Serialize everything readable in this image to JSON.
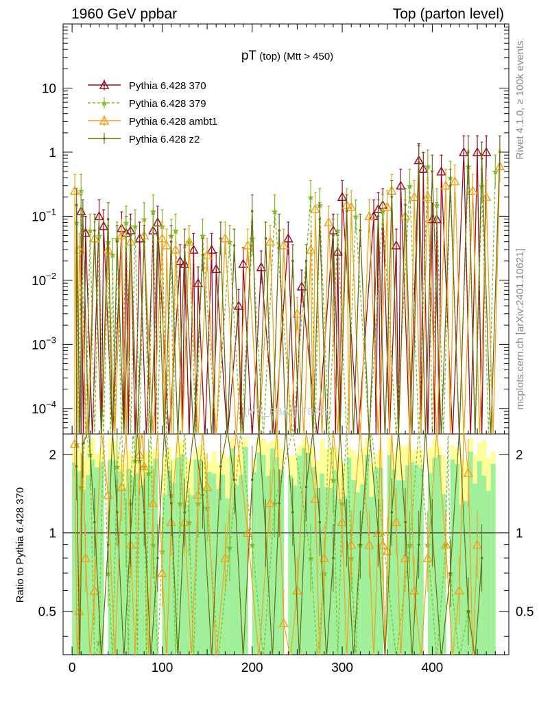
{
  "header": {
    "left": "1960 GeV ppbar",
    "right": "Top (parton level)"
  },
  "side_labels": {
    "rivet": "Rivet 4.1.0, ≥ 100k events",
    "mcplots": "mcplots.cern.ch [arXiv:2401.10621]"
  },
  "watermark": "(MC_FBA_TTBAR)",
  "chart_data": {
    "type": "line",
    "title_main": "pT",
    "title_sub": " (top) (Mtt > 450)",
    "xlabel": "",
    "ylabel": "",
    "xlim": [
      -10,
      485
    ],
    "ylim": [
      4e-05,
      100
    ],
    "y_scale": "log",
    "x_ticks": [
      0,
      100,
      200,
      300,
      400
    ],
    "x_tick_labels": [
      "0",
      "100",
      "200",
      "300",
      "400"
    ],
    "y_ticks": [
      0.0001,
      0.001,
      0.01,
      0.1,
      1,
      10
    ],
    "y_tick_labels": [
      {
        "base": "10",
        "exp": "−4"
      },
      {
        "base": "10",
        "exp": "−3"
      },
      {
        "base": "10",
        "exp": "−2"
      },
      {
        "base": "10",
        "exp": "−1"
      },
      {
        "base": "1",
        "exp": ""
      },
      {
        "base": "10",
        "exp": ""
      }
    ],
    "legend_position": "top-left",
    "series": [
      {
        "name": "Pythia 6.428 370",
        "color": "#9a0f1e",
        "dash": "",
        "marker": "triangle-open",
        "points": [
          [
            10,
            0.12
          ],
          [
            15,
            0.055
          ],
          [
            30,
            0.1
          ],
          [
            35,
            0.07
          ],
          [
            55,
            0.065
          ],
          [
            60,
            0.055
          ],
          [
            65,
            0.06
          ],
          [
            75,
            0.045
          ],
          [
            90,
            0.06
          ],
          [
            95,
            0.08
          ],
          [
            120,
            0.02
          ],
          [
            125,
            0.018
          ],
          [
            135,
            0.03
          ],
          [
            140,
            0.009
          ],
          [
            155,
            0.03
          ],
          [
            160,
            0.015
          ],
          [
            185,
            0.004
          ],
          [
            190,
            0.018
          ],
          [
            210,
            0.016
          ],
          [
            240,
            0.045
          ],
          [
            255,
            0.008
          ],
          [
            290,
            0.06
          ],
          [
            295,
            0.028
          ],
          [
            300,
            0.2
          ],
          [
            335,
            0.1
          ],
          [
            340,
            0.13
          ],
          [
            345,
            0.15
          ],
          [
            360,
            0.035
          ],
          [
            365,
            0.3
          ],
          [
            385,
            0.75
          ],
          [
            390,
            0.55
          ],
          [
            400,
            0.09
          ],
          [
            405,
            0.09
          ],
          [
            410,
            0.5
          ],
          [
            435,
            1.0
          ],
          [
            450,
            1.0
          ],
          [
            460,
            1.0
          ]
        ]
      },
      {
        "name": "Pythia 6.428 379",
        "color": "#7db928",
        "dash": "4,3",
        "marker": "star",
        "points": [
          [
            5,
            0.08
          ],
          [
            10,
            0.25
          ],
          [
            20,
            0.06
          ],
          [
            30,
            0.05
          ],
          [
            40,
            0.04
          ],
          [
            45,
            0.025
          ],
          [
            50,
            0.045
          ],
          [
            60,
            0.08
          ],
          [
            70,
            0.07
          ],
          [
            80,
            0.09
          ],
          [
            90,
            0.12
          ],
          [
            100,
            0.07
          ],
          [
            110,
            0.05
          ],
          [
            115,
            0.06
          ],
          [
            130,
            0.04
          ],
          [
            145,
            0.05
          ],
          [
            175,
            0.04
          ],
          [
            200,
            0.045
          ],
          [
            225,
            0.12
          ],
          [
            265,
            0.2
          ],
          [
            275,
            0.15
          ],
          [
            295,
            0.06
          ],
          [
            315,
            0.1
          ],
          [
            345,
            0.12
          ],
          [
            375,
            0.3
          ],
          [
            395,
            0.6
          ],
          [
            405,
            0.15
          ],
          [
            420,
            0.4
          ],
          [
            440,
            0.6
          ],
          [
            455,
            0.3
          ],
          [
            470,
            0.5
          ]
        ]
      },
      {
        "name": "Pythia 6.428 ambt1",
        "color": "#f0a21c",
        "dash": "",
        "marker": "triangle-open",
        "points": [
          [
            3,
            0.25
          ],
          [
            8,
            0.03
          ],
          [
            25,
            0.045
          ],
          [
            40,
            0.03
          ],
          [
            55,
            0.05
          ],
          [
            65,
            0.04
          ],
          [
            80,
            0.05
          ],
          [
            100,
            0.045
          ],
          [
            105,
            0.035
          ],
          [
            115,
            0.03
          ],
          [
            130,
            0.04
          ],
          [
            150,
            0.025
          ],
          [
            170,
            0.045
          ],
          [
            195,
            0.035
          ],
          [
            220,
            0.04
          ],
          [
            235,
            0.035
          ],
          [
            250,
            0.003
          ],
          [
            265,
            0.03
          ],
          [
            270,
            0.13
          ],
          [
            285,
            0.08
          ],
          [
            305,
            0.15
          ],
          [
            310,
            0.14
          ],
          [
            330,
            0.1
          ],
          [
            350,
            0.14
          ],
          [
            355,
            0.25
          ],
          [
            370,
            0.1
          ],
          [
            380,
            0.2
          ],
          [
            395,
            0.2
          ],
          [
            415,
            0.3
          ],
          [
            425,
            0.35
          ],
          [
            445,
            0.25
          ],
          [
            460,
            0.2
          ],
          [
            475,
            0.6
          ]
        ]
      },
      {
        "name": "Pythia 6.428 z2",
        "color": "#6b6b14",
        "dash": "",
        "marker": "dot",
        "points": [
          [
            5,
            0.15
          ],
          [
            12,
            0.1
          ],
          [
            25,
            0.06
          ],
          [
            40,
            0.09
          ],
          [
            50,
            0.04
          ],
          [
            65,
            0.05
          ],
          [
            80,
            0.04
          ],
          [
            95,
            0.05
          ],
          [
            110,
            0.04
          ],
          [
            125,
            0.035
          ],
          [
            145,
            0.025
          ],
          [
            165,
            0.045
          ],
          [
            180,
            0.035
          ],
          [
            200,
            0.12
          ],
          [
            215,
            0.045
          ],
          [
            230,
            0.06
          ],
          [
            245,
            0.02
          ],
          [
            260,
            0.02
          ],
          [
            275,
            0.09
          ],
          [
            290,
            0.05
          ],
          [
            305,
            0.12
          ],
          [
            320,
            0.06
          ],
          [
            340,
            0.1
          ],
          [
            355,
            0.2
          ],
          [
            370,
            0.15
          ],
          [
            385,
            0.7
          ],
          [
            400,
            0.5
          ],
          [
            420,
            0.3
          ],
          [
            440,
            1.0
          ],
          [
            455,
            0.8
          ],
          [
            475,
            1.0
          ]
        ]
      }
    ],
    "ratio_panel": {
      "ylabel": "Ratio to Pythia 6.428 370",
      "ylim": [
        0.34,
        2.4
      ],
      "y_scale": "log",
      "y_ticks": [
        0.5,
        1,
        2
      ],
      "y_tick_labels": [
        "0.5",
        "1",
        "2"
      ],
      "reference": 1,
      "band_x_start": 0,
      "band_x_end": 470,
      "band_bin_width": 5,
      "ratios": {
        "Pythia 6.428 379": [
          [
            5,
            2.2
          ],
          [
            10,
            1.5
          ],
          [
            20,
            2.0
          ],
          [
            30,
            0.38
          ],
          [
            40,
            0.7
          ],
          [
            50,
            1.8
          ],
          [
            60,
            1.0
          ],
          [
            65,
            1.3
          ],
          [
            70,
            1.9
          ],
          [
            75,
            1.9
          ],
          [
            80,
            1.8
          ],
          [
            85,
            1.7
          ],
          [
            90,
            0.9
          ],
          [
            100,
            0.85
          ],
          [
            110,
            1.4
          ],
          [
            120,
            1.3
          ],
          [
            130,
            1.1
          ],
          [
            140,
            1.3
          ],
          [
            150,
            1.25
          ],
          [
            175,
            0.88
          ],
          [
            200,
            0.9
          ],
          [
            225,
            1.3
          ],
          [
            265,
            0.8
          ],
          [
            280,
            0.7
          ],
          [
            290,
            1.6
          ],
          [
            300,
            1.3
          ],
          [
            310,
            0.8
          ],
          [
            320,
            0.9
          ],
          [
            345,
            1.0
          ],
          [
            375,
            0.9
          ],
          [
            395,
            0.9
          ],
          [
            415,
            0.9
          ],
          [
            420,
            0.7
          ],
          [
            440,
            0.5
          ]
        ]
      },
      "ambt1_ratios": [
        [
          3,
          2.2
        ],
        [
          8,
          0.5
        ],
        [
          15,
          0.8
        ],
        [
          25,
          0.6
        ],
        [
          40,
          1.4
        ],
        [
          55,
          1.5
        ],
        [
          65,
          0.9
        ],
        [
          75,
          2.0
        ],
        [
          80,
          1.8
        ],
        [
          90,
          1.3
        ],
        [
          100,
          0.7
        ],
        [
          110,
          1.1
        ],
        [
          125,
          1.1
        ],
        [
          140,
          1.4
        ],
        [
          150,
          1.5
        ],
        [
          170,
          0.8
        ],
        [
          195,
          1.0
        ],
        [
          220,
          1.3
        ],
        [
          235,
          0.45
        ],
        [
          250,
          0.6
        ],
        [
          270,
          1.35
        ],
        [
          280,
          0.8
        ],
        [
          300,
          1.1
        ],
        [
          310,
          0.9
        ],
        [
          330,
          0.9
        ],
        [
          340,
          1.0
        ],
        [
          345,
          0.9
        ],
        [
          350,
          0.85
        ],
        [
          360,
          1.1
        ],
        [
          370,
          0.8
        ],
        [
          380,
          0.6
        ],
        [
          395,
          0.8
        ],
        [
          415,
          0.9
        ],
        [
          430,
          0.6
        ],
        [
          440,
          1.7
        ],
        [
          450,
          0.9
        ]
      ],
      "z2_ratios": [
        [
          5,
          1.8
        ],
        [
          12,
          2.2
        ],
        [
          25,
          1.1
        ],
        [
          40,
          0.9
        ],
        [
          50,
          1.2
        ],
        [
          65,
          1.0
        ],
        [
          80,
          1.2
        ],
        [
          95,
          0.8
        ],
        [
          110,
          1.3
        ],
        [
          125,
          1.2
        ],
        [
          145,
          1.4
        ],
        [
          165,
          1.8
        ],
        [
          180,
          1.6
        ],
        [
          200,
          1.6
        ],
        [
          215,
          1.0
        ],
        [
          230,
          1.3
        ],
        [
          245,
          1.2
        ],
        [
          260,
          1.5
        ],
        [
          275,
          1.1
        ],
        [
          290,
          0.8
        ],
        [
          305,
          1.0
        ],
        [
          320,
          0.9
        ],
        [
          340,
          1.0
        ],
        [
          355,
          1.2
        ],
        [
          370,
          1.1
        ],
        [
          385,
          0.9
        ],
        [
          400,
          1.0
        ],
        [
          420,
          0.7
        ],
        [
          440,
          0.5
        ],
        [
          455,
          0.8
        ]
      ]
    }
  }
}
